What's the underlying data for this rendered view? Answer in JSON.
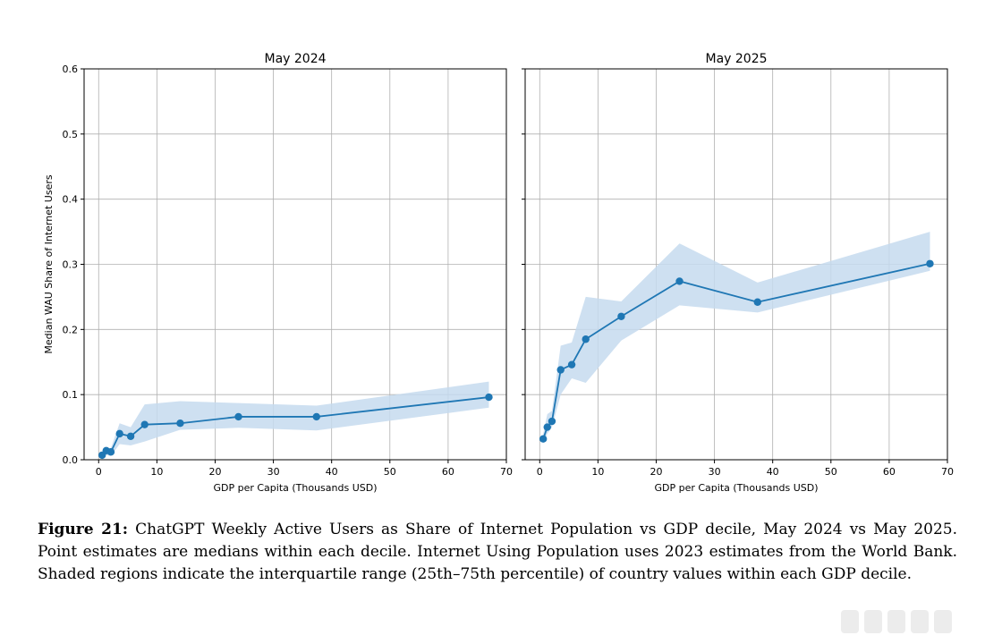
{
  "chart_data": [
    {
      "type": "line",
      "title": "May 2024",
      "xlabel": "GDP per Capita (Thousands USD)",
      "ylabel": "Median WAU Share of Internet Users",
      "xlim": [
        -2.5,
        70
      ],
      "ylim": [
        0,
        0.6
      ],
      "xticks": [
        0,
        10,
        20,
        30,
        40,
        50,
        60,
        70
      ],
      "yticks": [
        0.0,
        0.1,
        0.2,
        0.3,
        0.4,
        0.5,
        0.6
      ],
      "xtick_labels": [
        "0",
        "10",
        "20",
        "30",
        "40",
        "50",
        "60",
        "70"
      ],
      "ytick_labels": [
        "0.0",
        "0.1",
        "0.2",
        "0.3",
        "0.4",
        "0.5",
        "0.6"
      ],
      "grid": true,
      "color": "#1f77b4",
      "band_color": "#c6dbef",
      "x": [
        0.6,
        1.3,
        2.1,
        3.6,
        5.5,
        7.9,
        14.0,
        24.0,
        37.4,
        67.0
      ],
      "y": [
        0.007,
        0.014,
        0.012,
        0.04,
        0.036,
        0.054,
        0.056,
        0.066,
        0.066,
        0.096
      ],
      "band_low": [
        0.003,
        0.007,
        0.006,
        0.024,
        0.022,
        0.028,
        0.046,
        0.049,
        0.045,
        0.08
      ],
      "band_high": [
        0.012,
        0.018,
        0.018,
        0.056,
        0.05,
        0.085,
        0.09,
        0.087,
        0.083,
        0.12
      ]
    },
    {
      "type": "line",
      "title": "May 2025",
      "xlabel": "GDP per Capita (Thousands USD)",
      "ylabel": "",
      "xlim": [
        -2.5,
        70
      ],
      "ylim": [
        0,
        0.6
      ],
      "xticks": [
        0,
        10,
        20,
        30,
        40,
        50,
        60,
        70
      ],
      "yticks": [
        0.0,
        0.1,
        0.2,
        0.3,
        0.4,
        0.5,
        0.6
      ],
      "xtick_labels": [
        "0",
        "10",
        "20",
        "30",
        "40",
        "50",
        "60",
        "70"
      ],
      "ytick_labels": [],
      "grid": true,
      "color": "#1f77b4",
      "band_color": "#c6dbef",
      "x": [
        0.6,
        1.3,
        2.1,
        3.6,
        5.5,
        7.9,
        14.0,
        24.0,
        37.4,
        67.0
      ],
      "y": [
        0.032,
        0.05,
        0.059,
        0.138,
        0.146,
        0.185,
        0.22,
        0.274,
        0.242,
        0.301
      ],
      "band_low": [
        0.025,
        0.04,
        0.05,
        0.1,
        0.125,
        0.118,
        0.183,
        0.237,
        0.226,
        0.29
      ],
      "band_high": [
        0.04,
        0.07,
        0.075,
        0.175,
        0.18,
        0.25,
        0.243,
        0.332,
        0.272,
        0.35
      ]
    }
  ],
  "caption": {
    "label": "Figure 21:",
    "text": "ChatGPT Weekly Active Users as Share of Internet Population vs GDP decile, May 2024 vs May 2025. Point estimates are medians within each decile. Internet Using Population uses 2023 estimates from the World Bank. Shaded regions indicate the interquartile range (25th–75th percentile) of country values within each GDP decile."
  }
}
